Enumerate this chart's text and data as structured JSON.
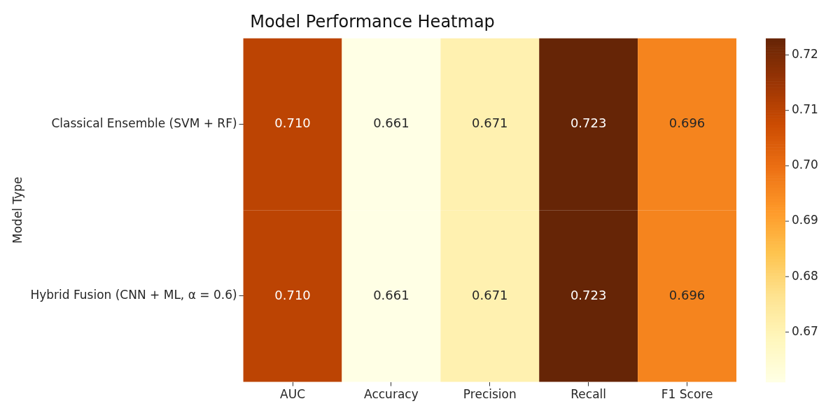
{
  "chart_data": {
    "type": "heatmap",
    "title": "Model Performance Heatmap",
    "ylabel": "Model Type",
    "categories": [
      "AUC",
      "Accuracy",
      "Precision",
      "Recall",
      "F1 Score"
    ],
    "y_categories": [
      "Classical Ensemble (SVM + RF)",
      "Hybrid Fusion (CNN + ML, α = 0.6)"
    ],
    "cells": [
      [
        0.71,
        0.661,
        0.671,
        0.723,
        0.696
      ],
      [
        0.71,
        0.661,
        0.671,
        0.723,
        0.696
      ]
    ],
    "cell_labels": [
      [
        "0.710",
        "0.661",
        "0.671",
        "0.723",
        "0.696"
      ],
      [
        "0.710",
        "0.661",
        "0.671",
        "0.723",
        "0.696"
      ]
    ],
    "clim": [
      0.661,
      0.723
    ],
    "cticks": [
      {
        "value": 0.67,
        "label": "0.67"
      },
      {
        "value": 0.68,
        "label": "0.68"
      },
      {
        "value": 0.69,
        "label": "0.69"
      },
      {
        "value": 0.7,
        "label": "0.70"
      },
      {
        "value": 0.71,
        "label": "0.71"
      },
      {
        "value": 0.72,
        "label": "0.72"
      }
    ],
    "grid": false
  }
}
